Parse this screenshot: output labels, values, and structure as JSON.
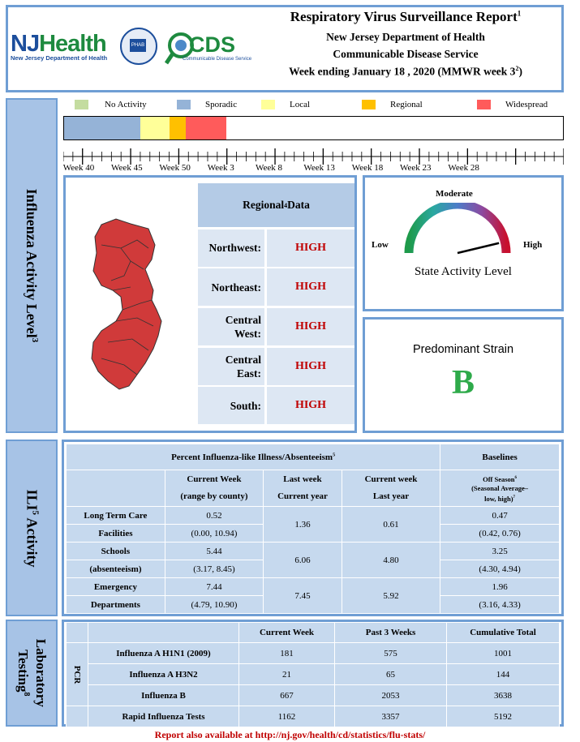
{
  "header": {
    "title": "Respiratory Virus Surveillance Report",
    "title_sup": "1",
    "dept": "New Jersey Department of Health",
    "service": "Communicable Disease Service",
    "week_prefix": "Week ending January 18 , 2020 (MMWR week 3",
    "week_sup": "2",
    "week_suffix": ")",
    "logo_nj": "NJ",
    "logo_health": "Health",
    "logo_sub": "New Jersey Department of Health",
    "logo_cds": "CDS",
    "logo_cds_sub": "Communicable Disease Service"
  },
  "sidebars": {
    "influenza": "Influenza Activity Level",
    "influenza_sup": "3",
    "ili": "ILI",
    "ili_sup": "5",
    "ili_rest": " Activity",
    "lab1": "Laboratory",
    "lab2": "Testing",
    "lab_sup": "8"
  },
  "legend": {
    "items": [
      {
        "label": "No Activity",
        "color": "#c4dca0"
      },
      {
        "label": "Sporadic",
        "color": "#95b3d7"
      },
      {
        "label": "Local",
        "color": "#ffff99"
      },
      {
        "label": "Regional",
        "color": "#ffc000"
      },
      {
        "label": "Widespread",
        "color": "#ff5b5b"
      }
    ]
  },
  "timeline": {
    "weeks": [
      "Week 40",
      "Week 45",
      "Week 50",
      "Week 3",
      "Week 8",
      "Week 13",
      "Week 18",
      "Week 23",
      "Week 28"
    ],
    "activity": [
      {
        "level": "Sporadic",
        "weeks": 8
      },
      {
        "level": "Local",
        "weeks": 3
      },
      {
        "level": "Regional",
        "weeks": 1.7
      },
      {
        "level": "Widespread",
        "weeks": 4.2
      }
    ],
    "total_weeks": 52
  },
  "regional": {
    "title": "Regional",
    "title_sup": "4",
    "title_suffix": " Data",
    "rows": [
      {
        "name1": "Northwest:",
        "name2": "",
        "value": "HIGH"
      },
      {
        "name1": "Northeast:",
        "name2": "",
        "value": "HIGH"
      },
      {
        "name1": "Central",
        "name2": "West:",
        "value": "HIGH"
      },
      {
        "name1": "Central",
        "name2": "East:",
        "value": "HIGH"
      },
      {
        "name1": "South:",
        "name2": "",
        "value": "HIGH"
      }
    ]
  },
  "state_activity": {
    "label_moderate": "Moderate",
    "label_low": "Low",
    "label_high": "High",
    "caption": "State Activity Level",
    "level_fraction": 0.88
  },
  "strain": {
    "caption": "Predominant Strain",
    "value": "B",
    "color": "#2eaa4a"
  },
  "ili": {
    "title": "Percent Influenza-like Illness/Absenteeism",
    "title_sup": "5",
    "baselines": "Baselines",
    "col1a": "Current Week",
    "col1b": "(range by county)",
    "col2a": "Last week",
    "col2b": "Current year",
    "col3a": "Current week",
    "col3b": "Last year",
    "col4a": "Off Season",
    "col4a_sup": "6",
    "col4b": "(Seasonal Average–",
    "col4c": "low, high)",
    "col4c_sup": "7",
    "rows": [
      {
        "name1": "Long Term Care",
        "name2": "Facilities",
        "cur": "0.52",
        "cur_range": "(0.00, 10.94)",
        "last": "1.36",
        "lastyr": "0.61",
        "base": "0.47",
        "base_range": "(0.42, 0.76)"
      },
      {
        "name1": "Schools",
        "name2": "(absenteeism)",
        "cur": "5.44",
        "cur_range": "(3.17, 8.45)",
        "last": "6.06",
        "lastyr": "4.80",
        "base": "3.25",
        "base_range": "(4.30, 4.94)"
      },
      {
        "name1": "Emergency",
        "name2": "Departments",
        "cur": "7.44",
        "cur_range": "(4.79, 10.90)",
        "last": "7.45",
        "lastyr": "5.92",
        "base": "1.96",
        "base_range": "(3.16, 4.33)"
      }
    ]
  },
  "lab": {
    "headers": [
      "Current Week",
      "Past 3 Weeks",
      "Cumulative Total"
    ],
    "pcr": "PCR",
    "rows": [
      {
        "name": "Influenza A H1N1 (2009)",
        "cur": "181",
        "past3": "575",
        "cum": "1001"
      },
      {
        "name": "Influenza A H3N2",
        "cur": "21",
        "past3": "65",
        "cum": "144"
      },
      {
        "name": "Influenza B",
        "cur": "667",
        "past3": "2053",
        "cum": "3638"
      },
      {
        "name": "Rapid Influenza Tests",
        "cur": "1162",
        "past3": "3357",
        "cum": "5192"
      }
    ]
  },
  "footer": {
    "text": "Report also available at http://nj.gov/health/cd/statistics/flu-stats/",
    "color": "#c00000"
  }
}
